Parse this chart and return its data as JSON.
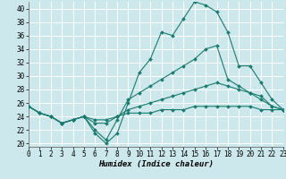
{
  "xlabel": "Humidex (Indice chaleur)",
  "xlim": [
    0,
    23
  ],
  "ylim": [
    19.5,
    41
  ],
  "yticks": [
    20,
    22,
    24,
    26,
    28,
    30,
    32,
    34,
    36,
    38,
    40
  ],
  "xticks": [
    0,
    1,
    2,
    3,
    4,
    5,
    6,
    7,
    8,
    9,
    10,
    11,
    12,
    13,
    14,
    15,
    16,
    17,
    18,
    19,
    20,
    21,
    22,
    23
  ],
  "bg_color": "#cce8ec",
  "grid_color": "#ffffff",
  "line_color": "#1a7a6e",
  "lines": [
    [
      25.5,
      24.5,
      24.0,
      23.0,
      23.5,
      24.0,
      21.5,
      20.0,
      21.5,
      26.0,
      30.5,
      32.5,
      36.5,
      36.0,
      38.5,
      41.0,
      40.5,
      39.5,
      36.5,
      31.5,
      31.5,
      29.0,
      26.5,
      25.0
    ],
    [
      25.5,
      24.5,
      24.0,
      23.0,
      23.5,
      24.0,
      22.0,
      20.5,
      23.5,
      26.5,
      27.5,
      28.5,
      29.5,
      30.5,
      31.5,
      32.5,
      34.0,
      34.5,
      29.5,
      28.5,
      27.5,
      26.5,
      25.5,
      25.0
    ],
    [
      25.5,
      24.5,
      24.0,
      23.0,
      23.5,
      24.0,
      23.0,
      23.0,
      24.0,
      25.0,
      25.5,
      26.0,
      26.5,
      27.0,
      27.5,
      28.0,
      28.5,
      29.0,
      28.5,
      28.0,
      27.5,
      27.0,
      25.5,
      25.0
    ],
    [
      25.5,
      24.5,
      24.0,
      23.0,
      23.5,
      24.0,
      23.5,
      23.5,
      24.0,
      24.5,
      24.5,
      24.5,
      25.0,
      25.0,
      25.0,
      25.5,
      25.5,
      25.5,
      25.5,
      25.5,
      25.5,
      25.0,
      25.0,
      25.0
    ]
  ],
  "marker": "D",
  "markersize": 2.0,
  "linewidth": 0.8,
  "tick_fontsize": 5.5,
  "xlabel_fontsize": 6.5
}
